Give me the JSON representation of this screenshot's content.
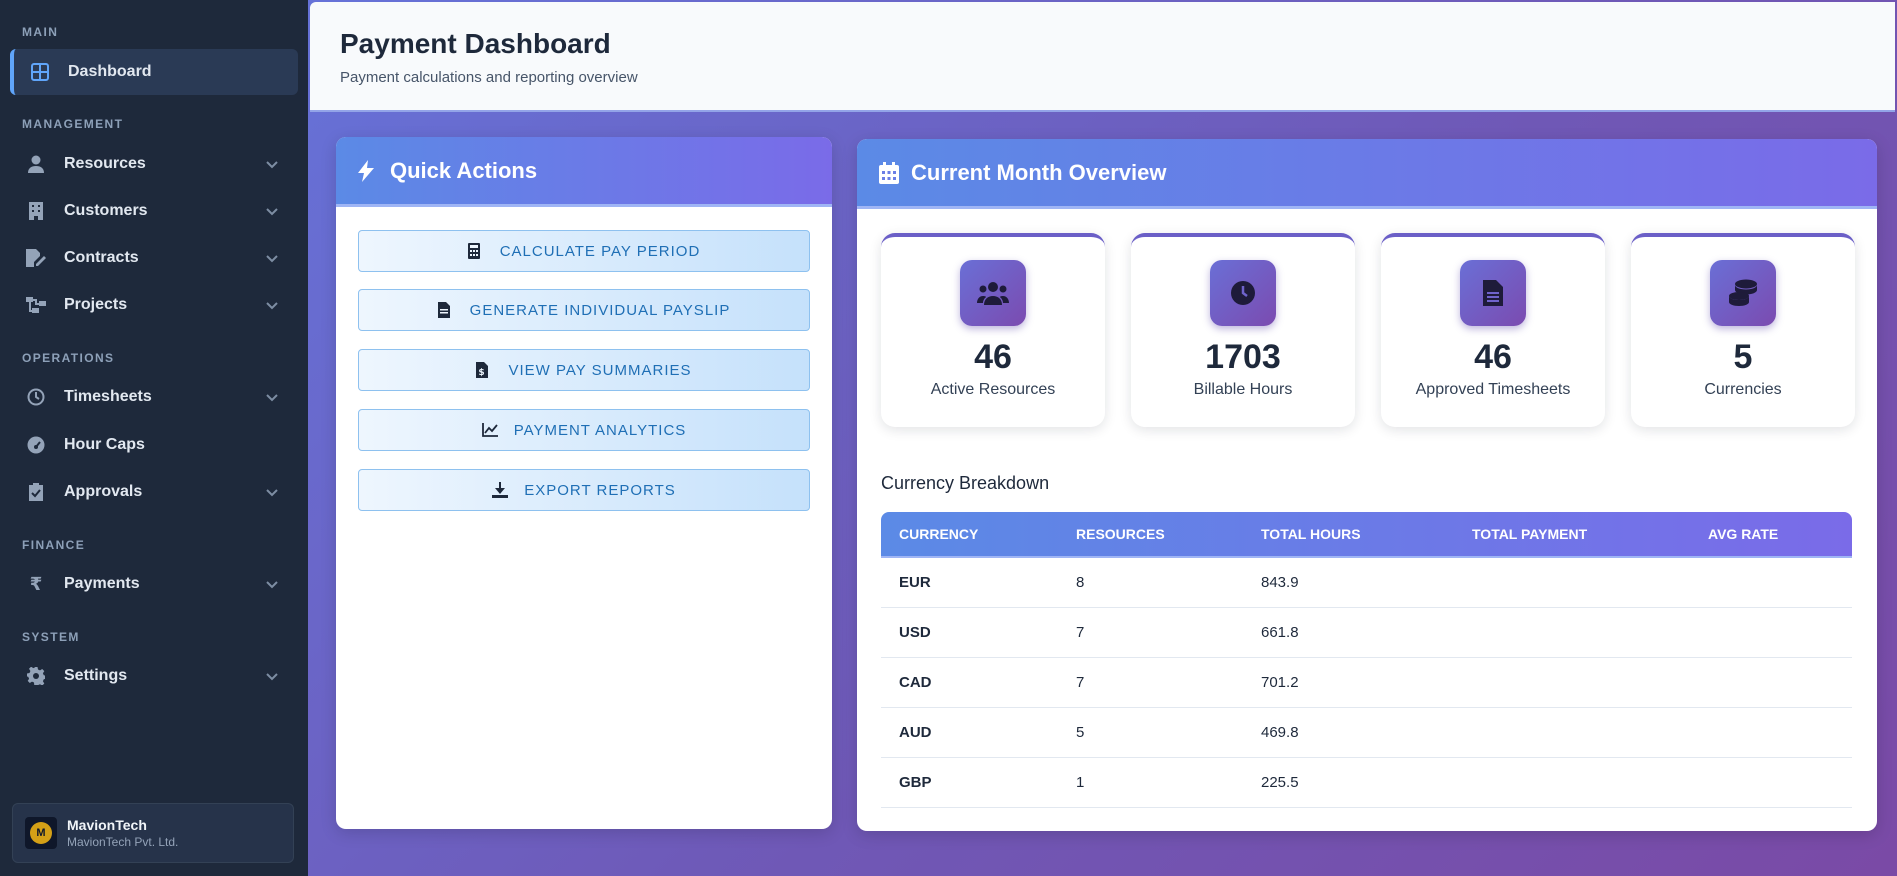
{
  "sidebar": {
    "sections": {
      "main": "MAIN",
      "management": "MANAGEMENT",
      "operations": "OPERATIONS",
      "finance": "FINANCE",
      "system": "SYSTEM"
    },
    "items": {
      "dashboard": "Dashboard",
      "resources": "Resources",
      "customers": "Customers",
      "contracts": "Contracts",
      "projects": "Projects",
      "timesheets": "Timesheets",
      "hour_caps": "Hour Caps",
      "approvals": "Approvals",
      "payments": "Payments",
      "settings": "Settings"
    },
    "brand": {
      "name": "MavionTech",
      "subtitle": "MavionTech Pvt. Ltd.",
      "logo_letter": "M"
    }
  },
  "header": {
    "title": "Payment Dashboard",
    "subtitle": "Payment calculations and reporting overview"
  },
  "quick_actions": {
    "title": "Quick Actions",
    "buttons": {
      "calculate": "CALCULATE PAY PERIOD",
      "payslip": "GENERATE INDIVIDUAL PAYSLIP",
      "summaries": "VIEW PAY SUMMARIES",
      "analytics": "PAYMENT ANALYTICS",
      "export": "EXPORT REPORTS"
    }
  },
  "overview": {
    "title": "Current Month Overview",
    "stats": [
      {
        "value": "46",
        "label": "Active Resources",
        "icon": "users-icon"
      },
      {
        "value": "1703",
        "label": "Billable Hours",
        "icon": "clock-icon"
      },
      {
        "value": "46",
        "label": "Approved Timesheets",
        "icon": "document-icon"
      },
      {
        "value": "5",
        "label": "Currencies",
        "icon": "coins-icon"
      }
    ],
    "breakdown_title": "Currency Breakdown",
    "table": {
      "headers": [
        "CURRENCY",
        "RESOURCES",
        "TOTAL HOURS",
        "TOTAL PAYMENT",
        "AVG RATE"
      ],
      "rows": [
        {
          "currency": "EUR",
          "resources": "8",
          "hours": "843.9",
          "payment": "",
          "avg_rate": ""
        },
        {
          "currency": "USD",
          "resources": "7",
          "hours": "661.8",
          "payment": "",
          "avg_rate": ""
        },
        {
          "currency": "CAD",
          "resources": "7",
          "hours": "701.2",
          "payment": "",
          "avg_rate": ""
        },
        {
          "currency": "AUD",
          "resources": "5",
          "hours": "469.8",
          "payment": "",
          "avg_rate": ""
        },
        {
          "currency": "GBP",
          "resources": "1",
          "hours": "225.5",
          "payment": "",
          "avg_rate": ""
        }
      ]
    }
  },
  "colors": {
    "sidebar_bg": "#1e293b",
    "accent": "#60a5fa",
    "button_text": "#1f6fb5",
    "gradient_start": "#5b8ae6",
    "gradient_end": "#7a6be8"
  }
}
